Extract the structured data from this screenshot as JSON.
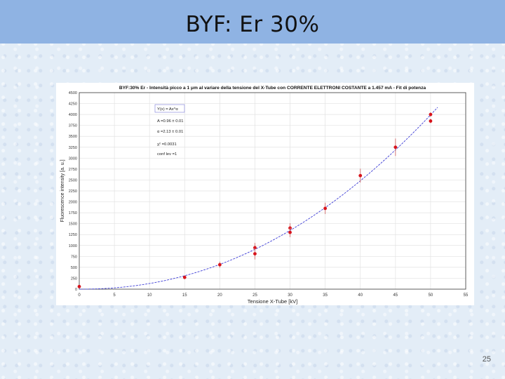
{
  "slide": {
    "title": "BYF: Er  30%",
    "page_number": "25"
  },
  "chart_data": {
    "type": "scatter",
    "title": "BYF:30% Er - Intensità picco a 1 μm al variare della tensione del X-Tube con CORRENTE ELETTRONI COSTANTE a 1.457 mA - Fit di potenza",
    "xlabel": "Tensione X-Tube [kV]",
    "ylabel": "Fluorescence intensity [a. u.]",
    "xlim": [
      0,
      55
    ],
    "ylim": [
      0,
      4500
    ],
    "x_ticks": [
      0,
      5,
      10,
      15,
      20,
      25,
      30,
      35,
      40,
      45,
      50,
      55
    ],
    "y_ticks": [
      0,
      250,
      500,
      750,
      1000,
      1250,
      1500,
      1750,
      2000,
      2250,
      2500,
      2750,
      3000,
      3250,
      3500,
      3750,
      4000,
      4250,
      4500
    ],
    "grid": true,
    "series": [
      {
        "kind": "points",
        "color": "#d7141c",
        "points": [
          {
            "x": 0,
            "y": 60,
            "err": 0
          },
          {
            "x": 15,
            "y": 270,
            "err": 40
          },
          {
            "x": 20,
            "y": 560,
            "err": 70
          },
          {
            "x": 25,
            "y": 950,
            "err": 110
          },
          {
            "x": 25,
            "y": 810,
            "err": 130
          },
          {
            "x": 30,
            "y": 1400,
            "err": 110
          },
          {
            "x": 30,
            "y": 1300,
            "err": 110
          },
          {
            "x": 35,
            "y": 1850,
            "err": 130
          },
          {
            "x": 40,
            "y": 2600,
            "err": 160
          },
          {
            "x": 45,
            "y": 3250,
            "err": 200
          },
          {
            "x": 50,
            "y": 4000,
            "err": 50
          },
          {
            "x": 50,
            "y": 3850,
            "err": 50
          }
        ]
      },
      {
        "kind": "fit",
        "color": "#3f3fd6",
        "A": 0.96,
        "alpha": 2.13,
        "x_range": [
          0,
          51
        ]
      }
    ],
    "legend": {
      "position": "top-left",
      "lines": [
        "Y(x) = Ax^α",
        "A =0.96 ± 0.01",
        "α =2.13 ± 0.01",
        "χ² =0.0031",
        "conf lev =1"
      ]
    }
  }
}
